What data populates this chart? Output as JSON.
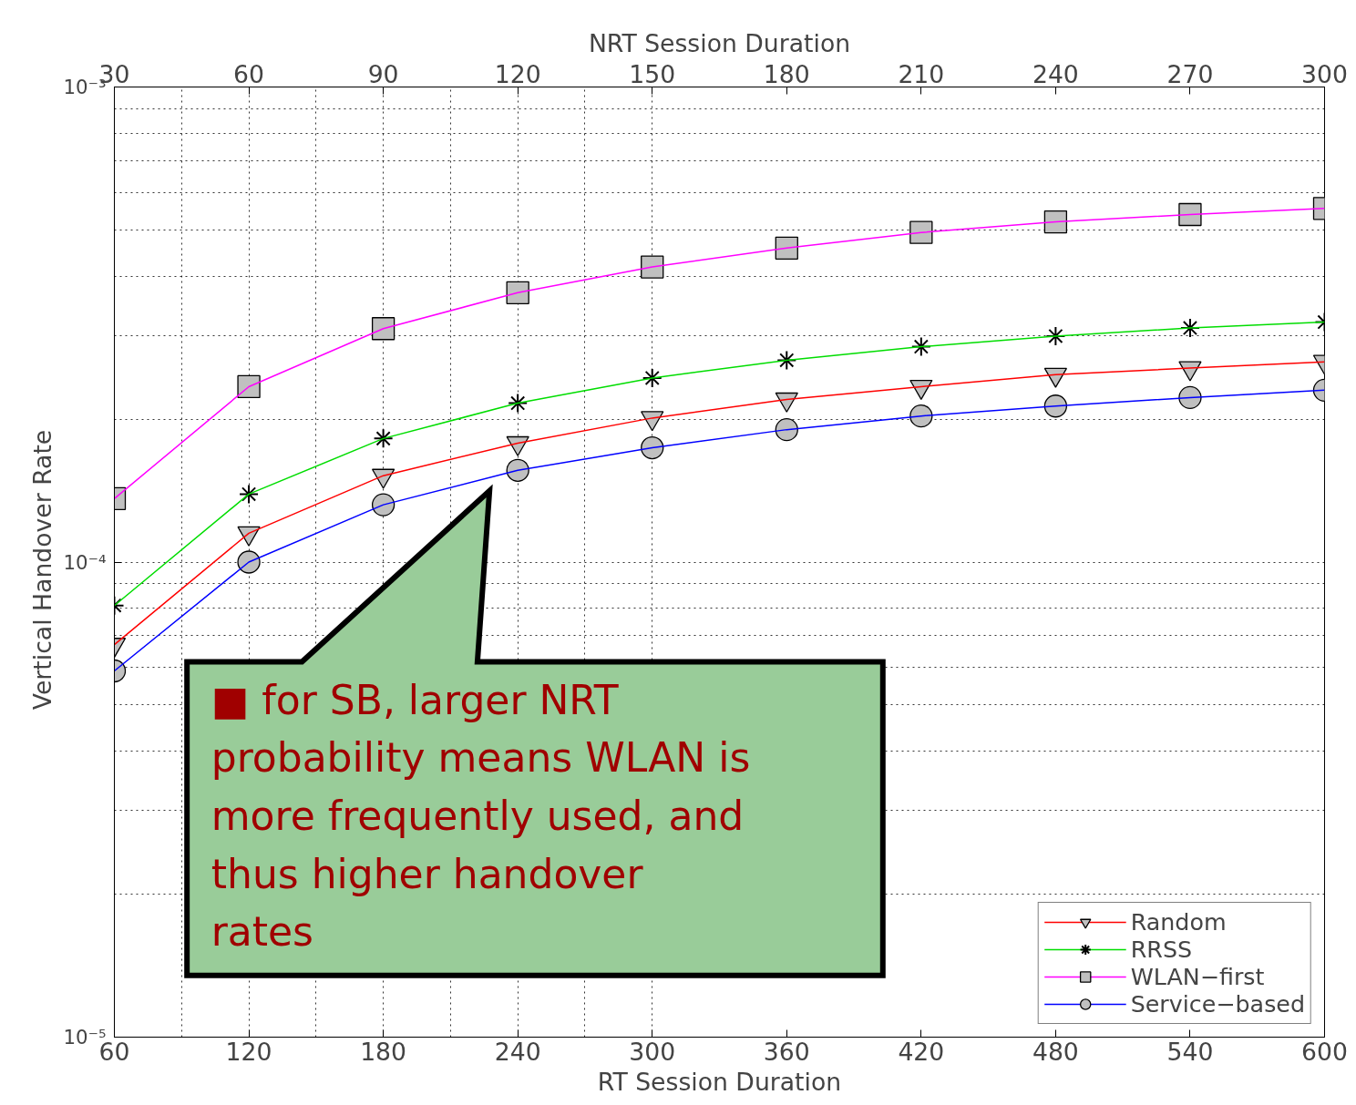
{
  "chart_data": {
    "type": "line",
    "xlabel": "RT Session Duration",
    "x2label": "NRT Session Duration",
    "ylabel": "Vertical  Handover  Rate",
    "x": [
      60,
      120,
      180,
      240,
      300,
      360,
      420,
      480,
      540,
      600
    ],
    "xlim": [
      60,
      600
    ],
    "xticks": [
      60,
      120,
      180,
      240,
      300,
      360,
      420,
      480,
      540,
      600
    ],
    "x2lim": [
      30,
      300
    ],
    "x2ticks": [
      30,
      60,
      90,
      120,
      150,
      180,
      210,
      240,
      270,
      300
    ],
    "ylim": [
      1e-05,
      0.001
    ],
    "yticks": [
      {
        "value": 1e-05,
        "label": "10⁻⁵"
      },
      {
        "value": 0.0001,
        "label": "10⁻⁴"
      },
      {
        "value": 0.001,
        "label": "10⁻³"
      }
    ],
    "log": "y",
    "grid": true,
    "legend": "bottom right",
    "line_style": "solid",
    "series": [
      {
        "name": "Random",
        "color": "#ff0000",
        "marker": "triangle",
        "values": [
          6.7e-05,
          0.000115,
          0.000152,
          0.000178,
          0.000201,
          0.00022,
          0.000234,
          0.000248,
          0.000256,
          0.000264
        ]
      },
      {
        "name": "RRSS",
        "color": "#00dd00",
        "marker": "cross",
        "values": [
          8.1e-05,
          0.000139,
          0.000182,
          0.000216,
          0.000244,
          0.000266,
          0.000284,
          0.000299,
          0.000311,
          0.00032
        ]
      },
      {
        "name": "WLAN−first",
        "color": "#ff00ff",
        "marker": "square",
        "values": [
          0.000136,
          0.000234,
          0.00031,
          0.000369,
          0.000418,
          0.000458,
          0.000494,
          0.00052,
          0.000539,
          0.000555
        ]
      },
      {
        "name": "Service−based",
        "color": "#0000ff",
        "marker": "circle",
        "values": [
          5.9e-05,
          0.0001,
          0.000132,
          0.000156,
          0.000174,
          0.00019,
          0.000203,
          0.000213,
          0.000222,
          0.00023
        ]
      }
    ],
    "annotations": [
      "■ for SB, larger NRT probability means WLAN is more frequently used, and thus higher handover rates"
    ]
  }
}
